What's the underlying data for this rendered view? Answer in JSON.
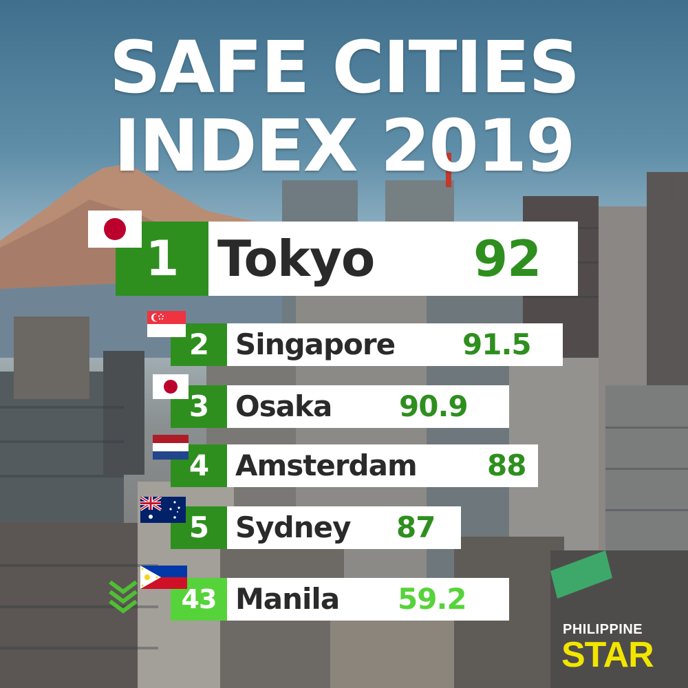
{
  "title": {
    "line1": "SAFE CITIES",
    "line2": "INDEX 2019"
  },
  "colors": {
    "rank_green": "#2e8f1f",
    "score_green": "#2e8f1f",
    "manila_green": "#56d33a",
    "title_white": "#ffffff",
    "logo_yellow": "#f2e600"
  },
  "rankings": [
    {
      "rank": "1",
      "city": "Tokyo",
      "score": "92",
      "flag": "japan-flag-icon"
    },
    {
      "rank": "2",
      "city": "Singapore",
      "score": "91.5",
      "flag": "singapore-flag-icon"
    },
    {
      "rank": "3",
      "city": "Osaka",
      "score": "90.9",
      "flag": "japan-flag-icon"
    },
    {
      "rank": "4",
      "city": "Amsterdam",
      "score": "88",
      "flag": "netherlands-flag-icon"
    },
    {
      "rank": "5",
      "city": "Sydney",
      "score": "87",
      "flag": "australia-flag-icon"
    },
    {
      "rank": "43",
      "city": "Manila",
      "score": "59.2",
      "flag": "philippines-flag-icon"
    }
  ],
  "manila_indicator": "chevron-down-icon",
  "logo": {
    "line1": "PHILIPPINE",
    "line2": "STAR"
  }
}
